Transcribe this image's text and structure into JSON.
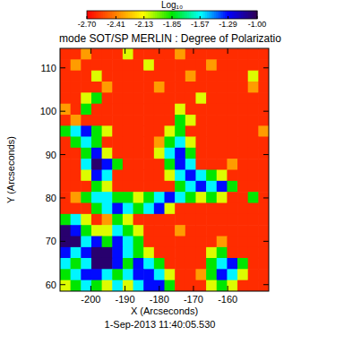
{
  "chart_data": {
    "type": "heatmap",
    "title": "mode SOT/SP   MERLIN : Degree of Polarizatio",
    "x_label": "X (Arcseconds)",
    "y_label": "Y (Arcseconds)",
    "annotations": [
      "1-Sep-2013 11:40:05.530"
    ],
    "xlim": [
      -209,
      -148
    ],
    "ylim": [
      58.5,
      114.5
    ],
    "xticks": [
      -200,
      -190,
      -180,
      -170,
      -160
    ],
    "yticks": [
      60,
      70,
      80,
      90,
      100,
      110
    ],
    "colorbar": {
      "label": "Log₁₀",
      "range": [
        -2.7,
        -1.0
      ],
      "ticks": [
        -2.7,
        -2.41,
        -2.13,
        -1.85,
        -1.57,
        -1.29,
        -1.0
      ]
    },
    "x": [
      -207.5,
      -204.4,
      -201.4,
      -198.3,
      -195.3,
      -192.2,
      -189.2,
      -186.1,
      -183.1,
      -180.0,
      -177.0,
      -173.9,
      -170.9,
      -167.8,
      -164.8,
      -161.7,
      -158.7,
      -155.6,
      -152.6,
      -149.5
    ],
    "y": [
      113.2,
      110.7,
      108.1,
      105.6,
      103.0,
      100.5,
      97.9,
      95.4,
      92.9,
      90.3,
      87.8,
      85.2,
      82.7,
      80.1,
      77.6,
      75.0,
      72.5,
      69.9,
      67.4,
      64.9,
      62.3,
      59.8
    ],
    "values": [
      [
        -2.6,
        -2.6,
        -2.35,
        -2.6,
        -2.6,
        -2.6,
        -2.1,
        -2.6,
        -2.6,
        -2.6,
        -2.6,
        -2.35,
        -2.6,
        -2.6,
        -2.6,
        -2.6,
        -2.6,
        -2.6,
        -2.6,
        -2.6
      ],
      [
        -2.6,
        -2.35,
        -2.6,
        -2.6,
        -2.6,
        -2.6,
        -2.6,
        -2.6,
        -2.1,
        -2.6,
        -2.6,
        -2.6,
        -2.6,
        -2.6,
        -2.35,
        -2.6,
        -2.6,
        -2.6,
        -2.6,
        -2.6
      ],
      [
        -2.6,
        -2.6,
        -2.6,
        -2.1,
        -2.6,
        -2.6,
        -2.6,
        -2.6,
        -2.6,
        -2.6,
        -2.6,
        -2.6,
        -2.35,
        -2.6,
        -2.6,
        -2.6,
        -2.6,
        -2.6,
        -2.1,
        -2.6
      ],
      [
        -2.6,
        -2.6,
        -2.6,
        -2.6,
        -2.35,
        -2.6,
        -2.6,
        -2.6,
        -2.6,
        -2.35,
        -2.6,
        -2.6,
        -2.6,
        -2.6,
        -2.6,
        -2.6,
        -2.6,
        -2.6,
        -2.35,
        -2.6
      ],
      [
        -2.6,
        -2.6,
        -2.1,
        -1.85,
        -2.6,
        -2.6,
        -2.6,
        -2.6,
        -2.6,
        -2.6,
        -2.6,
        -2.6,
        -2.6,
        -2.1,
        -2.6,
        -2.6,
        -2.6,
        -2.6,
        -2.6,
        -2.6
      ],
      [
        -2.35,
        -2.6,
        -1.85,
        -2.6,
        -2.6,
        -2.6,
        -2.6,
        -2.6,
        -2.6,
        -2.6,
        -2.6,
        -2.1,
        -2.6,
        -2.6,
        -2.6,
        -2.6,
        -2.6,
        -2.6,
        -2.6,
        -2.6
      ],
      [
        -2.6,
        -2.35,
        -2.6,
        -2.6,
        -2.6,
        -2.6,
        -2.6,
        -2.6,
        -2.6,
        -2.6,
        -2.6,
        -1.85,
        -2.1,
        -2.6,
        -2.6,
        -2.6,
        -2.6,
        -2.6,
        -2.6,
        -2.6
      ],
      [
        -1.85,
        -1.55,
        -1.3,
        -1.85,
        -2.1,
        -2.6,
        -2.6,
        -2.6,
        -2.6,
        -2.6,
        -2.1,
        -1.85,
        -2.6,
        -2.6,
        -2.6,
        -2.6,
        -2.6,
        -2.6,
        -2.6,
        -2.35
      ],
      [
        -2.6,
        -1.85,
        -1.55,
        -1.85,
        -2.6,
        -2.6,
        -2.6,
        -2.6,
        -2.6,
        -2.35,
        -1.85,
        -1.55,
        -2.1,
        -2.6,
        -2.6,
        -2.6,
        -2.6,
        -2.6,
        -2.6,
        -2.6
      ],
      [
        -2.6,
        -2.6,
        -1.85,
        -1.3,
        -2.1,
        -2.6,
        -2.6,
        -2.6,
        -2.6,
        -2.1,
        -1.55,
        -1.3,
        -1.85,
        -2.6,
        -2.6,
        -2.6,
        -2.6,
        -2.6,
        -2.6,
        -2.6
      ],
      [
        -2.6,
        -2.6,
        -1.55,
        -1.05,
        -1.3,
        -1.85,
        -2.6,
        -2.6,
        -2.6,
        -2.6,
        -1.85,
        -1.3,
        -1.55,
        -2.6,
        -2.6,
        -2.6,
        -2.35,
        -2.6,
        -2.6,
        -2.6
      ],
      [
        -2.6,
        -2.6,
        -2.1,
        -1.3,
        -1.55,
        -2.6,
        -2.6,
        -2.6,
        -2.6,
        -2.6,
        -2.1,
        -1.55,
        -1.3,
        -1.55,
        -1.85,
        -2.1,
        -2.6,
        -2.6,
        -2.6,
        -2.6
      ],
      [
        -2.6,
        -2.6,
        -2.6,
        -1.85,
        -2.1,
        -2.6,
        -2.6,
        -2.6,
        -2.6,
        -2.6,
        -2.6,
        -1.85,
        -1.55,
        -1.3,
        -1.55,
        -1.3,
        -1.85,
        -2.6,
        -2.6,
        -2.6
      ],
      [
        -2.6,
        -2.35,
        -1.85,
        -1.55,
        -1.55,
        -1.85,
        -1.85,
        -2.1,
        -1.85,
        -1.55,
        -1.3,
        -1.55,
        -1.85,
        -2.1,
        -1.85,
        -2.1,
        -2.6,
        -2.6,
        -1.85,
        -2.6
      ],
      [
        -2.6,
        -2.6,
        -2.6,
        -1.85,
        -1.55,
        -1.3,
        -1.55,
        -1.85,
        -1.55,
        -1.3,
        -2.1,
        -2.6,
        -2.6,
        -2.6,
        -2.6,
        -2.6,
        -2.6,
        -2.6,
        -2.6,
        -2.6
      ],
      [
        -1.85,
        -1.55,
        -2.1,
        -2.6,
        -2.35,
        -1.85,
        -2.1,
        -2.6,
        -2.6,
        -2.6,
        -2.6,
        -2.6,
        -2.6,
        -2.6,
        -2.6,
        -2.6,
        -2.6,
        -2.6,
        -2.6,
        -2.6
      ],
      [
        -1.05,
        -1.3,
        -1.85,
        -2.1,
        -2.1,
        -1.55,
        -1.85,
        -2.1,
        -2.6,
        -2.6,
        -2.6,
        -2.35,
        -2.6,
        -2.6,
        -2.6,
        -2.6,
        -2.6,
        -2.6,
        -2.6,
        -2.6
      ],
      [
        -1.05,
        -1.05,
        -1.55,
        -1.3,
        -1.85,
        -1.3,
        -1.55,
        -1.85,
        -2.6,
        -2.6,
        -2.6,
        -2.6,
        -2.6,
        -2.6,
        -2.6,
        -2.35,
        -2.6,
        -2.6,
        -2.6,
        -2.6
      ],
      [
        -1.3,
        -1.55,
        -1.3,
        -1.05,
        -1.05,
        -1.3,
        -1.55,
        -1.85,
        -2.1,
        -2.6,
        -2.6,
        -2.6,
        -2.6,
        -2.6,
        -2.1,
        -1.85,
        -2.6,
        -2.6,
        -2.6,
        -2.6
      ],
      [
        -1.55,
        -1.85,
        -1.55,
        -1.05,
        -1.05,
        -1.3,
        -1.85,
        -1.3,
        -1.55,
        -1.85,
        -2.6,
        -2.6,
        -2.6,
        -2.6,
        -1.85,
        -1.55,
        -1.3,
        -1.85,
        -2.6,
        -2.6
      ],
      [
        -1.85,
        -1.55,
        -1.3,
        -1.3,
        -1.55,
        -1.85,
        -1.55,
        -1.3,
        -1.3,
        -1.55,
        -2.1,
        -2.6,
        -2.6,
        -2.35,
        -1.85,
        -1.3,
        -1.55,
        -2.1,
        -2.6,
        -2.6
      ],
      [
        -2.1,
        -1.85,
        -1.55,
        -1.85,
        -2.1,
        -1.55,
        -2.1,
        -1.55,
        -1.3,
        -1.3,
        -1.85,
        -2.6,
        -2.6,
        -2.6,
        -2.1,
        -1.85,
        -2.1,
        -2.6,
        -2.6,
        -2.6
      ]
    ]
  }
}
